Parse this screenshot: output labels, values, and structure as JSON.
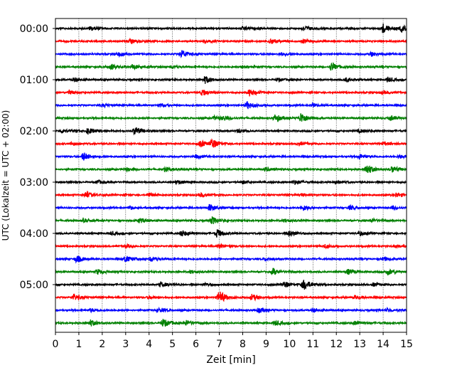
{
  "chart_data": {
    "type": "line",
    "title": "",
    "xlabel": "Zeit  [min]",
    "ylabel": "UTC (Lokalzeit = UTC + 02:00)",
    "xlim": [
      0,
      15
    ],
    "x_ticks": [
      "0",
      "1",
      "2",
      "3",
      "4",
      "5",
      "6",
      "7",
      "8",
      "9",
      "10",
      "11",
      "12",
      "13",
      "14",
      "15"
    ],
    "y_tick_labels": [
      "00:00",
      "01:00",
      "02:00",
      "03:00",
      "04:00",
      "05:00"
    ],
    "trace_minutes": 15,
    "grid_x": true,
    "trace_colors": [
      "#000000",
      "#ff0000",
      "#0000ff",
      "#008000"
    ],
    "traces": [
      {
        "start": "00:00",
        "events": [
          [
            14.0,
            0.9
          ],
          [
            10.6,
            0.5
          ],
          [
            1.5,
            0.4
          ],
          [
            8.0,
            0.35
          ],
          [
            14.8,
            0.6
          ]
        ]
      },
      {
        "start": "00:15",
        "events": [
          [
            3.2,
            0.4
          ],
          [
            9.2,
            0.5
          ],
          [
            10.6,
            0.35
          ],
          [
            6.4,
            0.3
          ]
        ]
      },
      {
        "start": "00:30",
        "events": [
          [
            5.4,
            0.8
          ],
          [
            13.5,
            0.4
          ],
          [
            2.7,
            0.35
          ],
          [
            9.6,
            0.3
          ]
        ]
      },
      {
        "start": "00:45",
        "events": [
          [
            11.8,
            0.8
          ],
          [
            3.3,
            0.5
          ],
          [
            2.4,
            0.5
          ],
          [
            5.0,
            0.3
          ],
          [
            8.0,
            0.3
          ]
        ]
      },
      {
        "start": "01:00",
        "events": [
          [
            6.4,
            0.7
          ],
          [
            0.8,
            0.4
          ],
          [
            12.4,
            0.35
          ],
          [
            14.2,
            0.45
          ],
          [
            9.5,
            0.3
          ]
        ]
      },
      {
        "start": "01:15",
        "events": [
          [
            6.3,
            0.6
          ],
          [
            8.3,
            0.7
          ],
          [
            0.6,
            0.35
          ],
          [
            14.0,
            0.3
          ]
        ]
      },
      {
        "start": "01:30",
        "events": [
          [
            8.2,
            0.7
          ],
          [
            4.5,
            0.3
          ],
          [
            11.0,
            0.3
          ],
          [
            2.0,
            0.25
          ]
        ]
      },
      {
        "start": "01:45",
        "events": [
          [
            10.5,
            1.0
          ],
          [
            9.4,
            0.7
          ],
          [
            6.8,
            0.35
          ],
          [
            14.3,
            0.4
          ],
          [
            7.2,
            0.35
          ]
        ]
      },
      {
        "start": "02:00",
        "events": [
          [
            3.4,
            0.8
          ],
          [
            1.4,
            0.6
          ],
          [
            0.3,
            0.4
          ],
          [
            13.0,
            0.3
          ],
          [
            7.8,
            0.3
          ]
        ]
      },
      {
        "start": "02:15",
        "events": [
          [
            6.7,
            0.9
          ],
          [
            6.2,
            0.6
          ],
          [
            0.7,
            0.3
          ],
          [
            14.0,
            0.35
          ],
          [
            10.4,
            0.3
          ]
        ]
      },
      {
        "start": "02:30",
        "events": [
          [
            1.2,
            0.8
          ],
          [
            13.0,
            0.45
          ],
          [
            14.7,
            0.35
          ],
          [
            6.0,
            0.3
          ]
        ]
      },
      {
        "start": "02:45",
        "events": [
          [
            13.3,
            1.0
          ],
          [
            14.4,
            0.6
          ],
          [
            4.7,
            0.4
          ],
          [
            9.0,
            0.35
          ],
          [
            3.0,
            0.3
          ]
        ]
      },
      {
        "start": "03:00",
        "events": [
          [
            5.2,
            0.4
          ],
          [
            10.2,
            0.4
          ],
          [
            1.8,
            0.35
          ],
          [
            8.0,
            0.3
          ],
          [
            12.0,
            0.3
          ]
        ]
      },
      {
        "start": "03:15",
        "events": [
          [
            1.3,
            0.6
          ],
          [
            4.0,
            0.4
          ],
          [
            6.2,
            0.35
          ],
          [
            14.6,
            0.4
          ],
          [
            10.5,
            0.3
          ]
        ]
      },
      {
        "start": "03:30",
        "events": [
          [
            6.6,
            0.7
          ],
          [
            10.6,
            0.5
          ],
          [
            12.6,
            0.4
          ],
          [
            3.2,
            0.3
          ],
          [
            14.4,
            0.3
          ]
        ]
      },
      {
        "start": "03:45",
        "events": [
          [
            6.7,
            0.7
          ],
          [
            3.6,
            0.5
          ],
          [
            9.8,
            0.3
          ],
          [
            13.5,
            0.35
          ],
          [
            1.2,
            0.3
          ]
        ]
      },
      {
        "start": "04:00",
        "events": [
          [
            6.9,
            0.8
          ],
          [
            5.4,
            0.6
          ],
          [
            10.0,
            0.6
          ],
          [
            13.0,
            0.4
          ],
          [
            2.4,
            0.3
          ]
        ]
      },
      {
        "start": "04:15",
        "events": [
          [
            7.0,
            0.4
          ],
          [
            3.0,
            0.3
          ],
          [
            11.5,
            0.35
          ],
          [
            14.5,
            0.3
          ]
        ]
      },
      {
        "start": "04:30",
        "events": [
          [
            0.9,
            0.7
          ],
          [
            3.0,
            0.6
          ],
          [
            4.1,
            0.5
          ],
          [
            14.0,
            0.4
          ],
          [
            9.0,
            0.3
          ]
        ]
      },
      {
        "start": "04:45",
        "events": [
          [
            9.3,
            0.6
          ],
          [
            12.5,
            0.5
          ],
          [
            14.2,
            0.6
          ],
          [
            1.8,
            0.5
          ],
          [
            5.8,
            0.3
          ]
        ]
      },
      {
        "start": "05:00",
        "events": [
          [
            10.6,
            1.0
          ],
          [
            9.8,
            0.6
          ],
          [
            4.5,
            0.5
          ],
          [
            6.4,
            0.3
          ],
          [
            13.6,
            0.3
          ]
        ]
      },
      {
        "start": "05:15",
        "events": [
          [
            7.0,
            1.3
          ],
          [
            0.8,
            0.6
          ],
          [
            8.4,
            0.6
          ],
          [
            12.8,
            0.35
          ],
          [
            4.0,
            0.3
          ]
        ]
      },
      {
        "start": "05:30",
        "events": [
          [
            8.7,
            0.5
          ],
          [
            4.4,
            0.4
          ],
          [
            11.0,
            0.35
          ],
          [
            14.2,
            0.35
          ],
          [
            1.5,
            0.3
          ]
        ]
      },
      {
        "start": "05:45",
        "events": [
          [
            4.6,
            0.8
          ],
          [
            1.5,
            0.6
          ],
          [
            5.6,
            0.5
          ],
          [
            9.4,
            0.45
          ],
          [
            12.8,
            0.4
          ]
        ]
      }
    ]
  }
}
